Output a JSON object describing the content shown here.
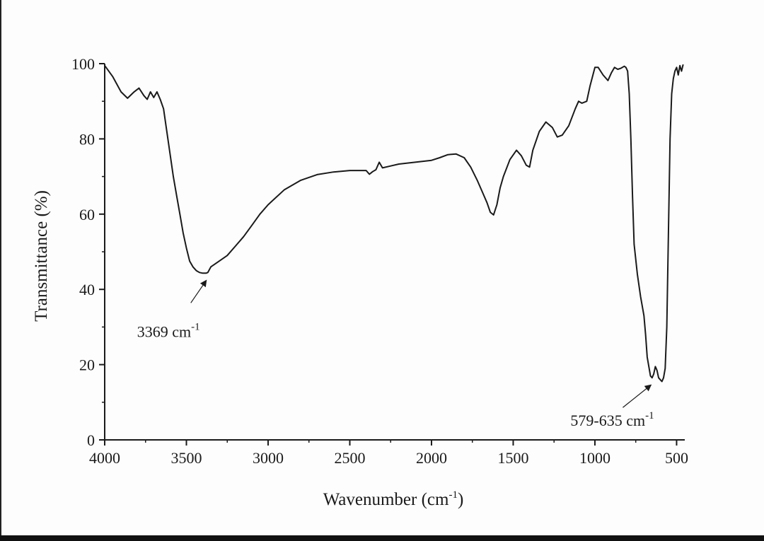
{
  "chart_data": {
    "type": "line",
    "xlabel": "Wavenumber (cm",
    "xlabel_sup": "-1",
    "xlabel_close": ")",
    "ylabel": "Transmittance (%)",
    "xlim": [
      4000,
      450
    ],
    "x_reversed": true,
    "ylim": [
      0,
      100
    ],
    "x_ticks": [
      "4000",
      "3500",
      "3000",
      "2500",
      "2000",
      "1500",
      "1000",
      "500"
    ],
    "y_ticks": [
      "0",
      "20",
      "40",
      "60",
      "80",
      "100"
    ],
    "grid": false,
    "series": [
      {
        "x": [
          4000,
          3950,
          3900,
          3860,
          3820,
          3790,
          3760,
          3740,
          3720,
          3700,
          3680,
          3660,
          3640,
          3620,
          3600,
          3580,
          3560,
          3540,
          3520,
          3500,
          3480,
          3460,
          3440,
          3420,
          3400,
          3380,
          3369,
          3350,
          3300,
          3250,
          3200,
          3150,
          3100,
          3050,
          3000,
          2900,
          2800,
          2700,
          2600,
          2500,
          2400,
          2380,
          2360,
          2340,
          2320,
          2300,
          2250,
          2200,
          2100,
          2000,
          1950,
          1900,
          1850,
          1800,
          1760,
          1720,
          1690,
          1660,
          1640,
          1620,
          1600,
          1580,
          1560,
          1520,
          1480,
          1450,
          1420,
          1400,
          1380,
          1340,
          1300,
          1260,
          1230,
          1200,
          1160,
          1120,
          1100,
          1080,
          1050,
          1030,
          1000,
          980,
          950,
          920,
          900,
          880,
          860,
          840,
          820,
          810,
          800,
          790,
          780,
          770,
          760,
          740,
          720,
          700,
          690,
          680,
          660,
          650,
          640,
          630,
          620,
          610,
          600,
          590,
          580,
          570,
          560,
          550,
          540,
          530,
          520,
          510,
          500,
          490,
          480,
          470,
          460
        ],
        "y": [
          99.5,
          96.5,
          92.5,
          90.8,
          92.5,
          93.5,
          91.5,
          90.5,
          92.5,
          91,
          92.5,
          90.5,
          88,
          82,
          76,
          70,
          65,
          60,
          55,
          51,
          47.5,
          46,
          45,
          44.5,
          44.3,
          44.3,
          44.5,
          46,
          47.5,
          49,
          51.5,
          54,
          57,
          60,
          62.5,
          66.5,
          69,
          70.5,
          71.2,
          71.6,
          71.6,
          70.6,
          71.3,
          71.8,
          73.8,
          72.3,
          72.8,
          73.3,
          73.8,
          74.3,
          75,
          75.8,
          76,
          75,
          72.5,
          69,
          66,
          63,
          60.5,
          59.8,
          62.5,
          67,
          70,
          74.5,
          77,
          75.5,
          73,
          72.5,
          77,
          82,
          84.5,
          83,
          80.5,
          81,
          83.5,
          88,
          90,
          89.5,
          90,
          94,
          99,
          99,
          97,
          95.5,
          97.5,
          99,
          98.5,
          98.8,
          99.3,
          99,
          98,
          92,
          80,
          65,
          52,
          44,
          38,
          33,
          28,
          22,
          17,
          16.5,
          17.5,
          19.5,
          18.5,
          16.5,
          16,
          15.5,
          16.5,
          19,
          30,
          55,
          80,
          92,
          96,
          98,
          99,
          97,
          99.5,
          98,
          99.8
        ]
      }
    ],
    "annotations": [
      {
        "text": "3369 cm",
        "sup": "-1",
        "x": 3369,
        "y": 44.3
      },
      {
        "text": "579-635 cm",
        "sup": "-1",
        "x": 630,
        "y": 16.5
      }
    ]
  }
}
